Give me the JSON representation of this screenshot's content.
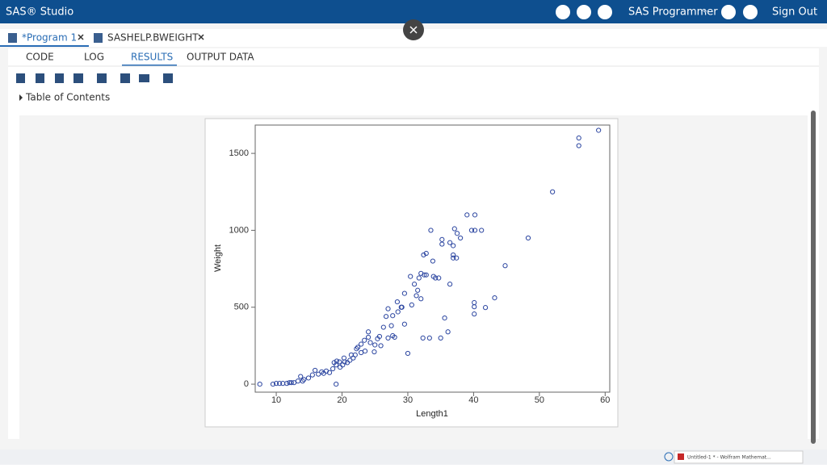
{
  "app": {
    "title": "SAS® Studio",
    "role": "SAS Programmer",
    "sign_out": "Sign Out"
  },
  "tabs": [
    "*Program 1",
    "SASHELP.BWEIGHT"
  ],
  "subtabs": [
    "CODE",
    "LOG",
    "RESULTS",
    "OUTPUT DATA"
  ],
  "toc": "Table of Contents",
  "taskbar": {
    "window": "Untitled-1 * - Wolfram Mathemat..."
  },
  "chart_data": {
    "type": "scatter",
    "xlabel": "Length1",
    "ylabel": "Weight",
    "color": "#2b45a0",
    "x": [
      59,
      56,
      56,
      52,
      48.3,
      44.8,
      43.2,
      41.8,
      40.1,
      40.1,
      40.1,
      39,
      40.2,
      39.7,
      40.2,
      41.2,
      37.1,
      37.5,
      38,
      33.5,
      35.2,
      35.2,
      36.4,
      36.9,
      36.9,
      37.4,
      36.9,
      32.4,
      32.8,
      33.8,
      34.2,
      34.7,
      33.9,
      36.4,
      35.6,
      36.1,
      35,
      32.3,
      33.3,
      30,
      30.4,
      31,
      31.5,
      31.3,
      32,
      31.7,
      32,
      32.5,
      32.8,
      29.5,
      29,
      29.1,
      28.4,
      30.6,
      28.5,
      27.7,
      27,
      26.7,
      27.5,
      26.3,
      29.5,
      27.7,
      28,
      27,
      25.7,
      25.4,
      25.9,
      25,
      24.3,
      24,
      24,
      23.4,
      22.9,
      22.9,
      23.5,
      24.9,
      22.2,
      22,
      21.4,
      21.2,
      20.4,
      20.1,
      19.7,
      19.2,
      19.1,
      18.8,
      18.6,
      18.1,
      17.6,
      17.2,
      16.9,
      16.4,
      15.9,
      15.5,
      14.9,
      14.2,
      13.7,
      14,
      13.3,
      12.7,
      12.3,
      12,
      11.6,
      11,
      10.5,
      10,
      9.5,
      7.5,
      19.1,
      20.8,
      21.7,
      22.4,
      19.6,
      20.3
    ],
    "values": [
      1650,
      1600,
      1550,
      1250,
      950,
      770,
      561,
      498,
      530,
      503,
      456,
      1100,
      1100,
      1000,
      1000,
      1000,
      1010,
      980,
      950,
      1000,
      940,
      910,
      920,
      900,
      840,
      820,
      820,
      840,
      850,
      800,
      690,
      690,
      700,
      650,
      430,
      340,
      300,
      300,
      300,
      200,
      700,
      650,
      610,
      575,
      555,
      690,
      720,
      710,
      710,
      590,
      500,
      500,
      535,
      515,
      470,
      445,
      490,
      440,
      380,
      370,
      390,
      315,
      305,
      300,
      310,
      295,
      250,
      255,
      270,
      340,
      305,
      285,
      260,
      205,
      215,
      210,
      230,
      190,
      190,
      155,
      145,
      125,
      110,
      150,
      125,
      140,
      100,
      75,
      85,
      70,
      80,
      65,
      90,
      60,
      40,
      30,
      50,
      20,
      20,
      10,
      10,
      10,
      5,
      5,
      5,
      5,
      0,
      0,
      0,
      140,
      170,
      240,
      145,
      170
    ],
    "xlim": [
      6.8,
      60.7
    ],
    "ylim": [
      -52,
      1684
    ],
    "xticks": [
      10,
      20,
      30,
      40,
      50,
      60
    ],
    "yticks": [
      0,
      500,
      1000,
      1500
    ]
  }
}
